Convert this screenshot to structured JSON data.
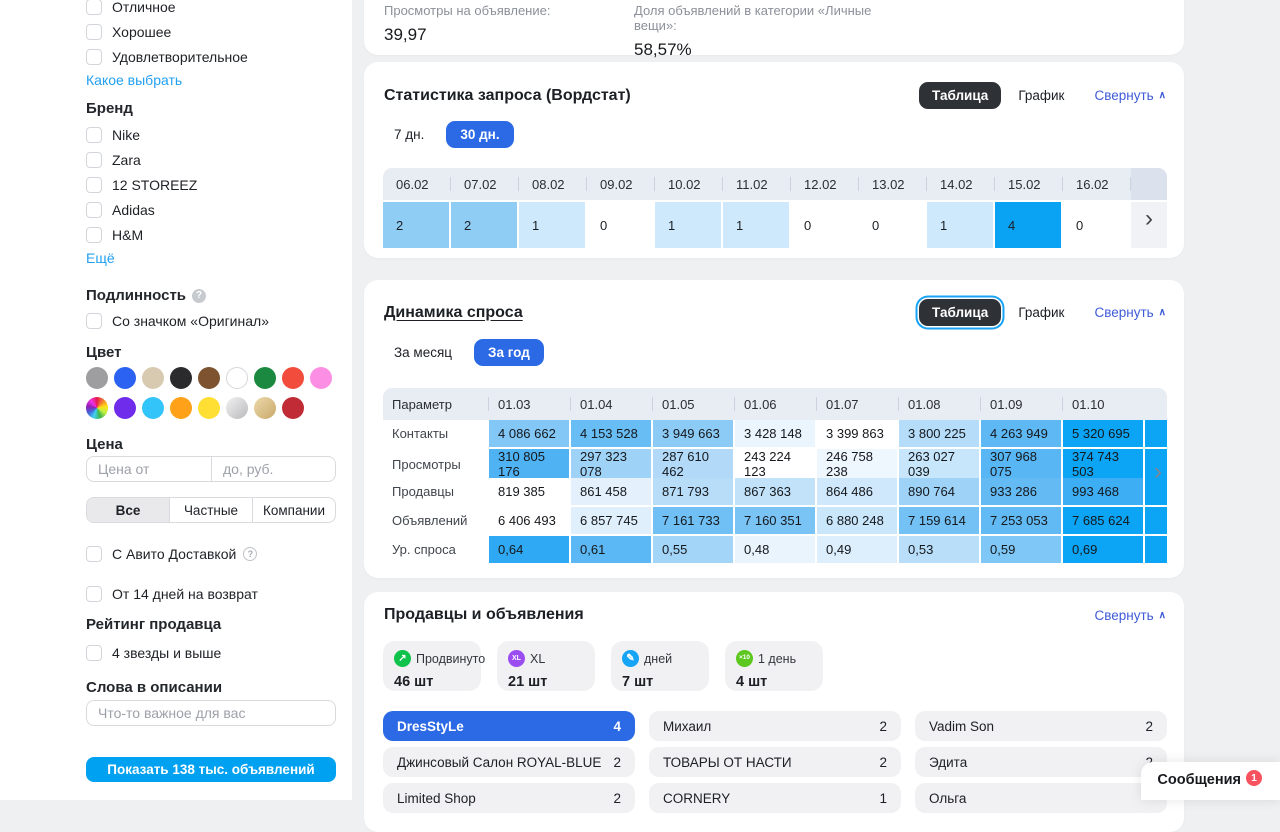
{
  "colors": {
    "accent_blue": "#2b69e5",
    "cyan_button": "#00a1f0",
    "link_blue": "#22a0f2",
    "collapse_link": "#3f5bd8",
    "dark_button": "#2e3136",
    "heat_max": "#0ca4f4",
    "table_header_bg": "#e8ecf3",
    "messages_badge": "#f8525f"
  },
  "sidebar": {
    "condition": {
      "options": [
        "Отличное",
        "Хорошее",
        "Удовлетворительное"
      ],
      "link": "Какое выбрать"
    },
    "brand": {
      "label": "Бренд",
      "options": [
        "Nike",
        "Zara",
        "12 STOREEZ",
        "Adidas",
        "H&M"
      ],
      "more_link": "Ещё"
    },
    "authenticity": {
      "label": "Подлинность",
      "option": "Со значком «Оригинал»"
    },
    "color": {
      "label": "Цвет",
      "swatches": [
        {
          "name": "gray",
          "css": "#9e9ea1"
        },
        {
          "name": "blue",
          "css": "#2b62f2"
        },
        {
          "name": "beige",
          "css": "#d8cab1"
        },
        {
          "name": "black",
          "css": "#2b2b2e"
        },
        {
          "name": "brown",
          "css": "#7d5330"
        },
        {
          "name": "white",
          "css": "#ffffff",
          "border": true
        },
        {
          "name": "green",
          "css": "#1b8a40"
        },
        {
          "name": "red",
          "css": "#f24c3d"
        },
        {
          "name": "pink",
          "css": "#fc8fe3"
        },
        {
          "name": "multicolor",
          "css": "conic-gradient(#e6194b,#f58231,#ffe119,#bfef45,#3cb44b,#42d4f4,#4363d8,#911eb4,#f032e6,#e6194b)"
        },
        {
          "name": "purple",
          "css": "#6f2ceb"
        },
        {
          "name": "cyan",
          "css": "#33c5f9"
        },
        {
          "name": "orange",
          "css": "#ffa219"
        },
        {
          "name": "yellow",
          "css": "#ffdf33"
        },
        {
          "name": "silver",
          "css": "linear-gradient(135deg,#f2f2f2,#b9b9bd)"
        },
        {
          "name": "gold",
          "css": "linear-gradient(135deg,#ecd9ab,#c9a86a)"
        },
        {
          "name": "dark-red",
          "css": "#c02b35"
        }
      ]
    },
    "price": {
      "label": "Цена",
      "from_placeholder": "Цена от",
      "to_placeholder": "до, руб."
    },
    "seller_type_tabs": [
      {
        "label": "Все",
        "selected": true
      },
      {
        "label": "Частные",
        "selected": false
      },
      {
        "label": "Компании",
        "selected": false
      }
    ],
    "delivery_option": "С Авито Доставкой",
    "return_option": "От 14 дней на возврат",
    "rating": {
      "label": "Рейтинг продавца",
      "option": "4 звезды и выше"
    },
    "description_words": {
      "label": "Слова в описании",
      "placeholder": "Что-то важное для вас"
    },
    "show_button": "Показать 138 тыс. объявлений"
  },
  "summary": {
    "views_label": "Просмотры на объявление:",
    "views_value": "39,97",
    "share_label": "Доля объявлений в категории «Личные вещи»:",
    "share_value": "58,57%"
  },
  "wordstat": {
    "title": "Статистика запроса (Вордстат)",
    "view": {
      "table": "Таблица",
      "chart": "График"
    },
    "collapse": "Свернуть",
    "period_tabs": [
      {
        "label": "7 дн.",
        "selected": false
      },
      {
        "label": "30 дн.",
        "selected": true
      }
    ],
    "chart_data": {
      "type": "heatmap",
      "dates": [
        "06.02",
        "07.02",
        "08.02",
        "09.02",
        "10.02",
        "11.02",
        "12.02",
        "13.02",
        "14.02",
        "15.02",
        "16.02"
      ],
      "values": [
        2,
        2,
        1,
        0,
        1,
        1,
        0,
        0,
        1,
        4,
        0
      ],
      "cell_colors": [
        "#90cdf5",
        "#90cdf5",
        "#cfe9fc",
        "#ffffff",
        "#cfe9fc",
        "#cfe9fc",
        "#ffffff",
        "#ffffff",
        "#cfe9fc",
        "#0aa3f3",
        "#ffffff"
      ]
    }
  },
  "demand": {
    "title": "Динамика спроса",
    "view": {
      "table": "Таблица",
      "chart": "График"
    },
    "collapse": "Свернуть",
    "period_tabs": [
      {
        "label": "За месяц",
        "selected": false
      },
      {
        "label": "За год",
        "selected": true
      }
    ],
    "chart_data": {
      "type": "heatmap-table",
      "param_header": "Параметр",
      "columns": [
        "01.03",
        "01.04",
        "01.05",
        "01.06",
        "01.07",
        "01.08",
        "01.09",
        "01.10"
      ],
      "edge_color": "#0ca4f4",
      "rows": [
        {
          "label": "Контакты",
          "values": [
            "4 086 662",
            "4 153 528",
            "3 949 663",
            "3 428 148",
            "3 399 863",
            "3 800 225",
            "4 263 949",
            "5 320 695"
          ],
          "colors": [
            "#82c7f5",
            "#68bdf4",
            "#8ccbf5",
            "#eaf5fd",
            "#ffffff",
            "#b5dcf9",
            "#5eb8f4",
            "#0ca4f4"
          ]
        },
        {
          "label": "Просмотры",
          "values": [
            "310 805 176",
            "297 323 078",
            "287 610 462",
            "243 224 123",
            "246 758 238",
            "263 027 039",
            "307 968 075",
            "374 743 503"
          ],
          "colors": [
            "#4fb2f3",
            "#9ed3f7",
            "#b2daf8",
            "#ffffff",
            "#eef6fe",
            "#c7e5fb",
            "#58b6f4",
            "#0ca4f4"
          ]
        },
        {
          "label": "Продавцы",
          "values": [
            "819 385",
            "861 458",
            "871 793",
            "867 363",
            "864 486",
            "890 764",
            "933 286",
            "993 468"
          ],
          "colors": [
            "#ffffff",
            "#e4f1fd",
            "#b8ddf9",
            "#c2e2fa",
            "#cfe8fb",
            "#9ed3f7",
            "#64bbf4",
            "#3dadf4"
          ]
        },
        {
          "label": "Объявлений",
          "values": [
            "6 406 493",
            "6 857 745",
            "7 161 733",
            "7 160 351",
            "6 880 248",
            "7 159 614",
            "7 253 053",
            "7 685 624"
          ],
          "colors": [
            "#ffffff",
            "#dfeffc",
            "#70c0f5",
            "#7ac3f5",
            "#c9e6fb",
            "#74c1f5",
            "#62baf4",
            "#0ca4f4"
          ]
        },
        {
          "label": "Ур. спроса",
          "values": [
            "0,64",
            "0,61",
            "0,55",
            "0,48",
            "0,49",
            "0,53",
            "0,59",
            "0,69"
          ],
          "colors": [
            "#2fa9f3",
            "#5cb8f4",
            "#a3d5f8",
            "#e9f4fd",
            "#ddeffc",
            "#b9def9",
            "#7ec7f6",
            "#0ca4f4"
          ]
        }
      ]
    }
  },
  "sellers": {
    "title": "Продавцы и объявления",
    "collapse": "Свернуть",
    "badges": [
      {
        "icon": "promoted-icon",
        "circle": "#0fc24b",
        "glyph": "↗",
        "label": "Продвинуто",
        "value": "46 шт"
      },
      {
        "icon": "xl-icon",
        "circle": "#9b4df2",
        "glyph": "XL",
        "label": "XL",
        "value": "21 шт"
      },
      {
        "icon": "highlight-icon",
        "circle": "#16a5f6",
        "glyph": "✎",
        "label": "дней",
        "value": "7 шт"
      },
      {
        "icon": "x10-icon",
        "circle": "#5cc71e",
        "glyph": "×10",
        "label": "1 день",
        "value": "4 шт"
      }
    ],
    "columns": [
      [
        {
          "name": "DresStyLe",
          "count": "4",
          "selected": true
        },
        {
          "name": "Джинсовый Салон ROYAL-BLUE",
          "count": "2"
        },
        {
          "name": "Limited Shop",
          "count": "2"
        }
      ],
      [
        {
          "name": "Михаил",
          "count": "2"
        },
        {
          "name": "ТОВАРЫ ОТ НАСТИ",
          "count": "2"
        },
        {
          "name": "CORNERY",
          "count": "1"
        }
      ],
      [
        {
          "name": "Vadim Son",
          "count": "2"
        },
        {
          "name": "Эдита",
          "count": "2"
        },
        {
          "name": "Ольга",
          "count": ""
        }
      ]
    ]
  },
  "messages": {
    "label": "Сообщения",
    "count": "1"
  }
}
